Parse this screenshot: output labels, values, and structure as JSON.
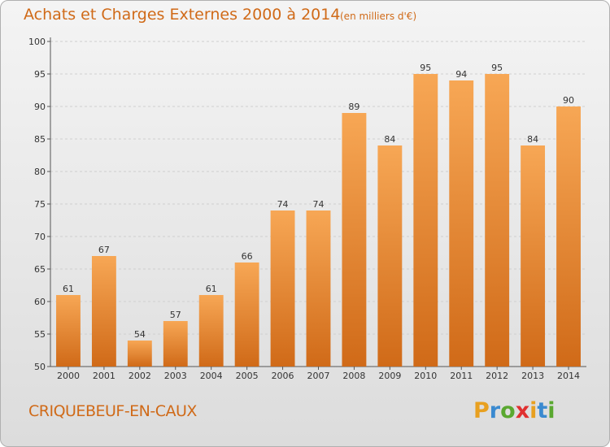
{
  "chart_data": {
    "type": "bar",
    "title": "Achats et Charges Externes 2000 à 2014",
    "subtitle": "(en milliers d'€)",
    "categories": [
      "2000",
      "2001",
      "2002",
      "2003",
      "2004",
      "2005",
      "2006",
      "2007",
      "2008",
      "2009",
      "2010",
      "2011",
      "2012",
      "2013",
      "2014"
    ],
    "values": [
      61,
      67,
      54,
      57,
      61,
      66,
      74,
      74,
      89,
      84,
      95,
      94,
      95,
      84,
      90
    ],
    "ylim": [
      50,
      100
    ],
    "yticks": [
      50,
      55,
      60,
      65,
      70,
      75,
      80,
      85,
      90,
      95,
      100
    ],
    "grid": true,
    "bar_color": "#e8822a",
    "xlabel": "",
    "ylabel": ""
  },
  "commune": "CRIQUEBEUF-EN-CAUX",
  "logo": {
    "letters": [
      "P",
      "r",
      "o",
      "x",
      "i",
      "t",
      "i"
    ],
    "colors": [
      "#e8a020",
      "#3a8ad0",
      "#5aa830",
      "#e03030",
      "#e8a020",
      "#3a8ad0",
      "#5aa830"
    ]
  }
}
